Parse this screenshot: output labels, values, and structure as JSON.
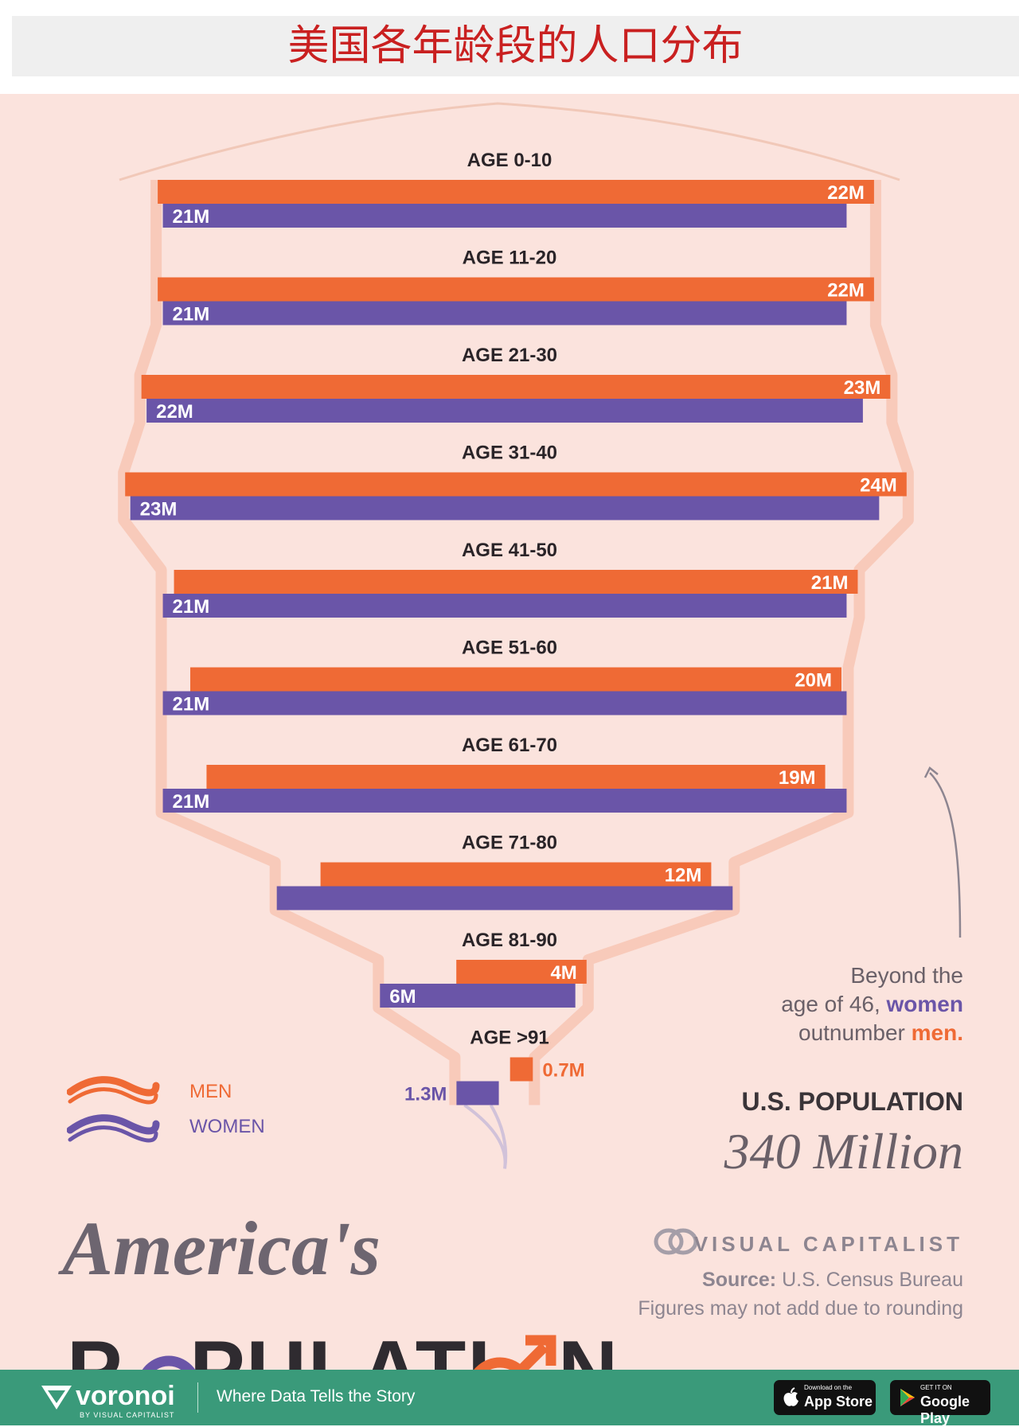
{
  "banner": {
    "title": "美国各年龄段的人口分布"
  },
  "chart_data": {
    "type": "bar",
    "title": "America's POPULATION",
    "categories": [
      "AGE 0-10",
      "AGE 11-20",
      "AGE 21-30",
      "AGE 31-40",
      "AGE 41-50",
      "AGE 51-60",
      "AGE 61-70",
      "AGE 71-80",
      "AGE 81-90",
      "AGE >91"
    ],
    "series": [
      {
        "name": "MEN",
        "color": "#ef6a35",
        "values": [
          22,
          22,
          23,
          24,
          21,
          20,
          19,
          12,
          4,
          0.7
        ],
        "labels": [
          "22M",
          "22M",
          "23M",
          "24M",
          "21M",
          "20M",
          "19M",
          "12M",
          "4M",
          "0.7M"
        ]
      },
      {
        "name": "WOMEN",
        "color": "#6a55a8",
        "values": [
          21,
          21,
          22,
          23,
          21,
          21,
          21,
          14,
          6,
          1.3
        ],
        "labels": [
          "21M",
          "21M",
          "22M",
          "23M",
          "21M",
          "21M",
          "21M",
          "",
          "6M",
          "1.3M"
        ]
      }
    ],
    "unit": "M",
    "legend_position": "bottom-left",
    "grid": false
  },
  "legend": {
    "men": "MEN",
    "women": "WOMEN"
  },
  "annotation": {
    "line1": "Beyond the",
    "line2_pre": "age of 46, ",
    "line2_women": "women",
    "line3_pre": "outnumber ",
    "line3_men": "men."
  },
  "summary": {
    "label": "U.S. POPULATION",
    "value": "340 Million"
  },
  "brand": {
    "publisher": "VISUAL CAPITALIST",
    "source_label": "Source:",
    "source_value": "U.S. Census Bureau",
    "rounding_note": "Figures may not add due to rounding"
  },
  "headline": {
    "line1": "America's",
    "line2": "POPULATION"
  },
  "footer": {
    "brand": "voronoi",
    "brand_sub": "BY VISUAL CAPITALIST",
    "tagline": "Where Data Tells the Story",
    "app_store_small": "Download on the",
    "app_store_big": "App Store",
    "google_play_small": "GET IT ON",
    "google_play_big": "Google Play"
  },
  "colors": {
    "men": "#ef6a35",
    "women": "#6a55a8",
    "background": "#fbe3dd",
    "footer": "#3a9a7a"
  }
}
